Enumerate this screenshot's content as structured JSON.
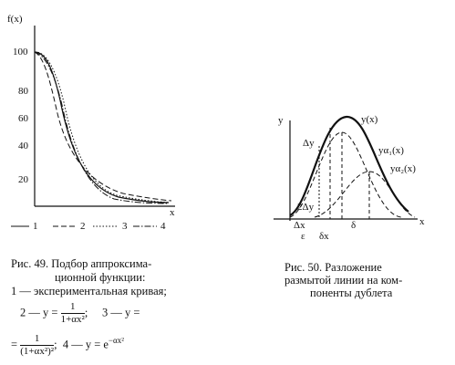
{
  "figure_49": {
    "y_axis_label": "f(x)",
    "x_axis_label": "x",
    "y_ticks": [
      "100",
      "80",
      "60",
      "40",
      "20"
    ],
    "legend": [
      "1",
      "2",
      "3",
      "4"
    ],
    "caption": {
      "lines": [
        "Рис. 49. Подбор аппроксима-",
        "ционной функции:",
        "1 — экспериментальная кривая;"
      ],
      "formula_2": {
        "label": "2 — y =",
        "numerator": "1",
        "denominator": "1+αx²",
        "end": ";"
      },
      "formula_3": {
        "label": "3 — y =",
        "continuation": "=",
        "numerator": "1",
        "denominator": "(1+αx²)²",
        "end": ";"
      },
      "formula_4": {
        "label": "4 — y = e",
        "exponent": "−αx²"
      }
    }
  },
  "figure_50": {
    "y_axis_label": "y",
    "x_axis_label": "x",
    "labels": {
      "sum_curve": "y(x)",
      "component_1": "yα₁(x)",
      "component_2": "yα₂(x)",
      "delta_y": "Δy",
      "two_delta_y": "2Δy",
      "delta_x": "Δx",
      "epsilon": "ε",
      "delta_x_small": "δx",
      "delta": "δ"
    },
    "caption": {
      "lines": [
        "Рис. 50.   Разложение",
        "размытой линии на ком-",
        "поненты дублета"
      ]
    }
  }
}
